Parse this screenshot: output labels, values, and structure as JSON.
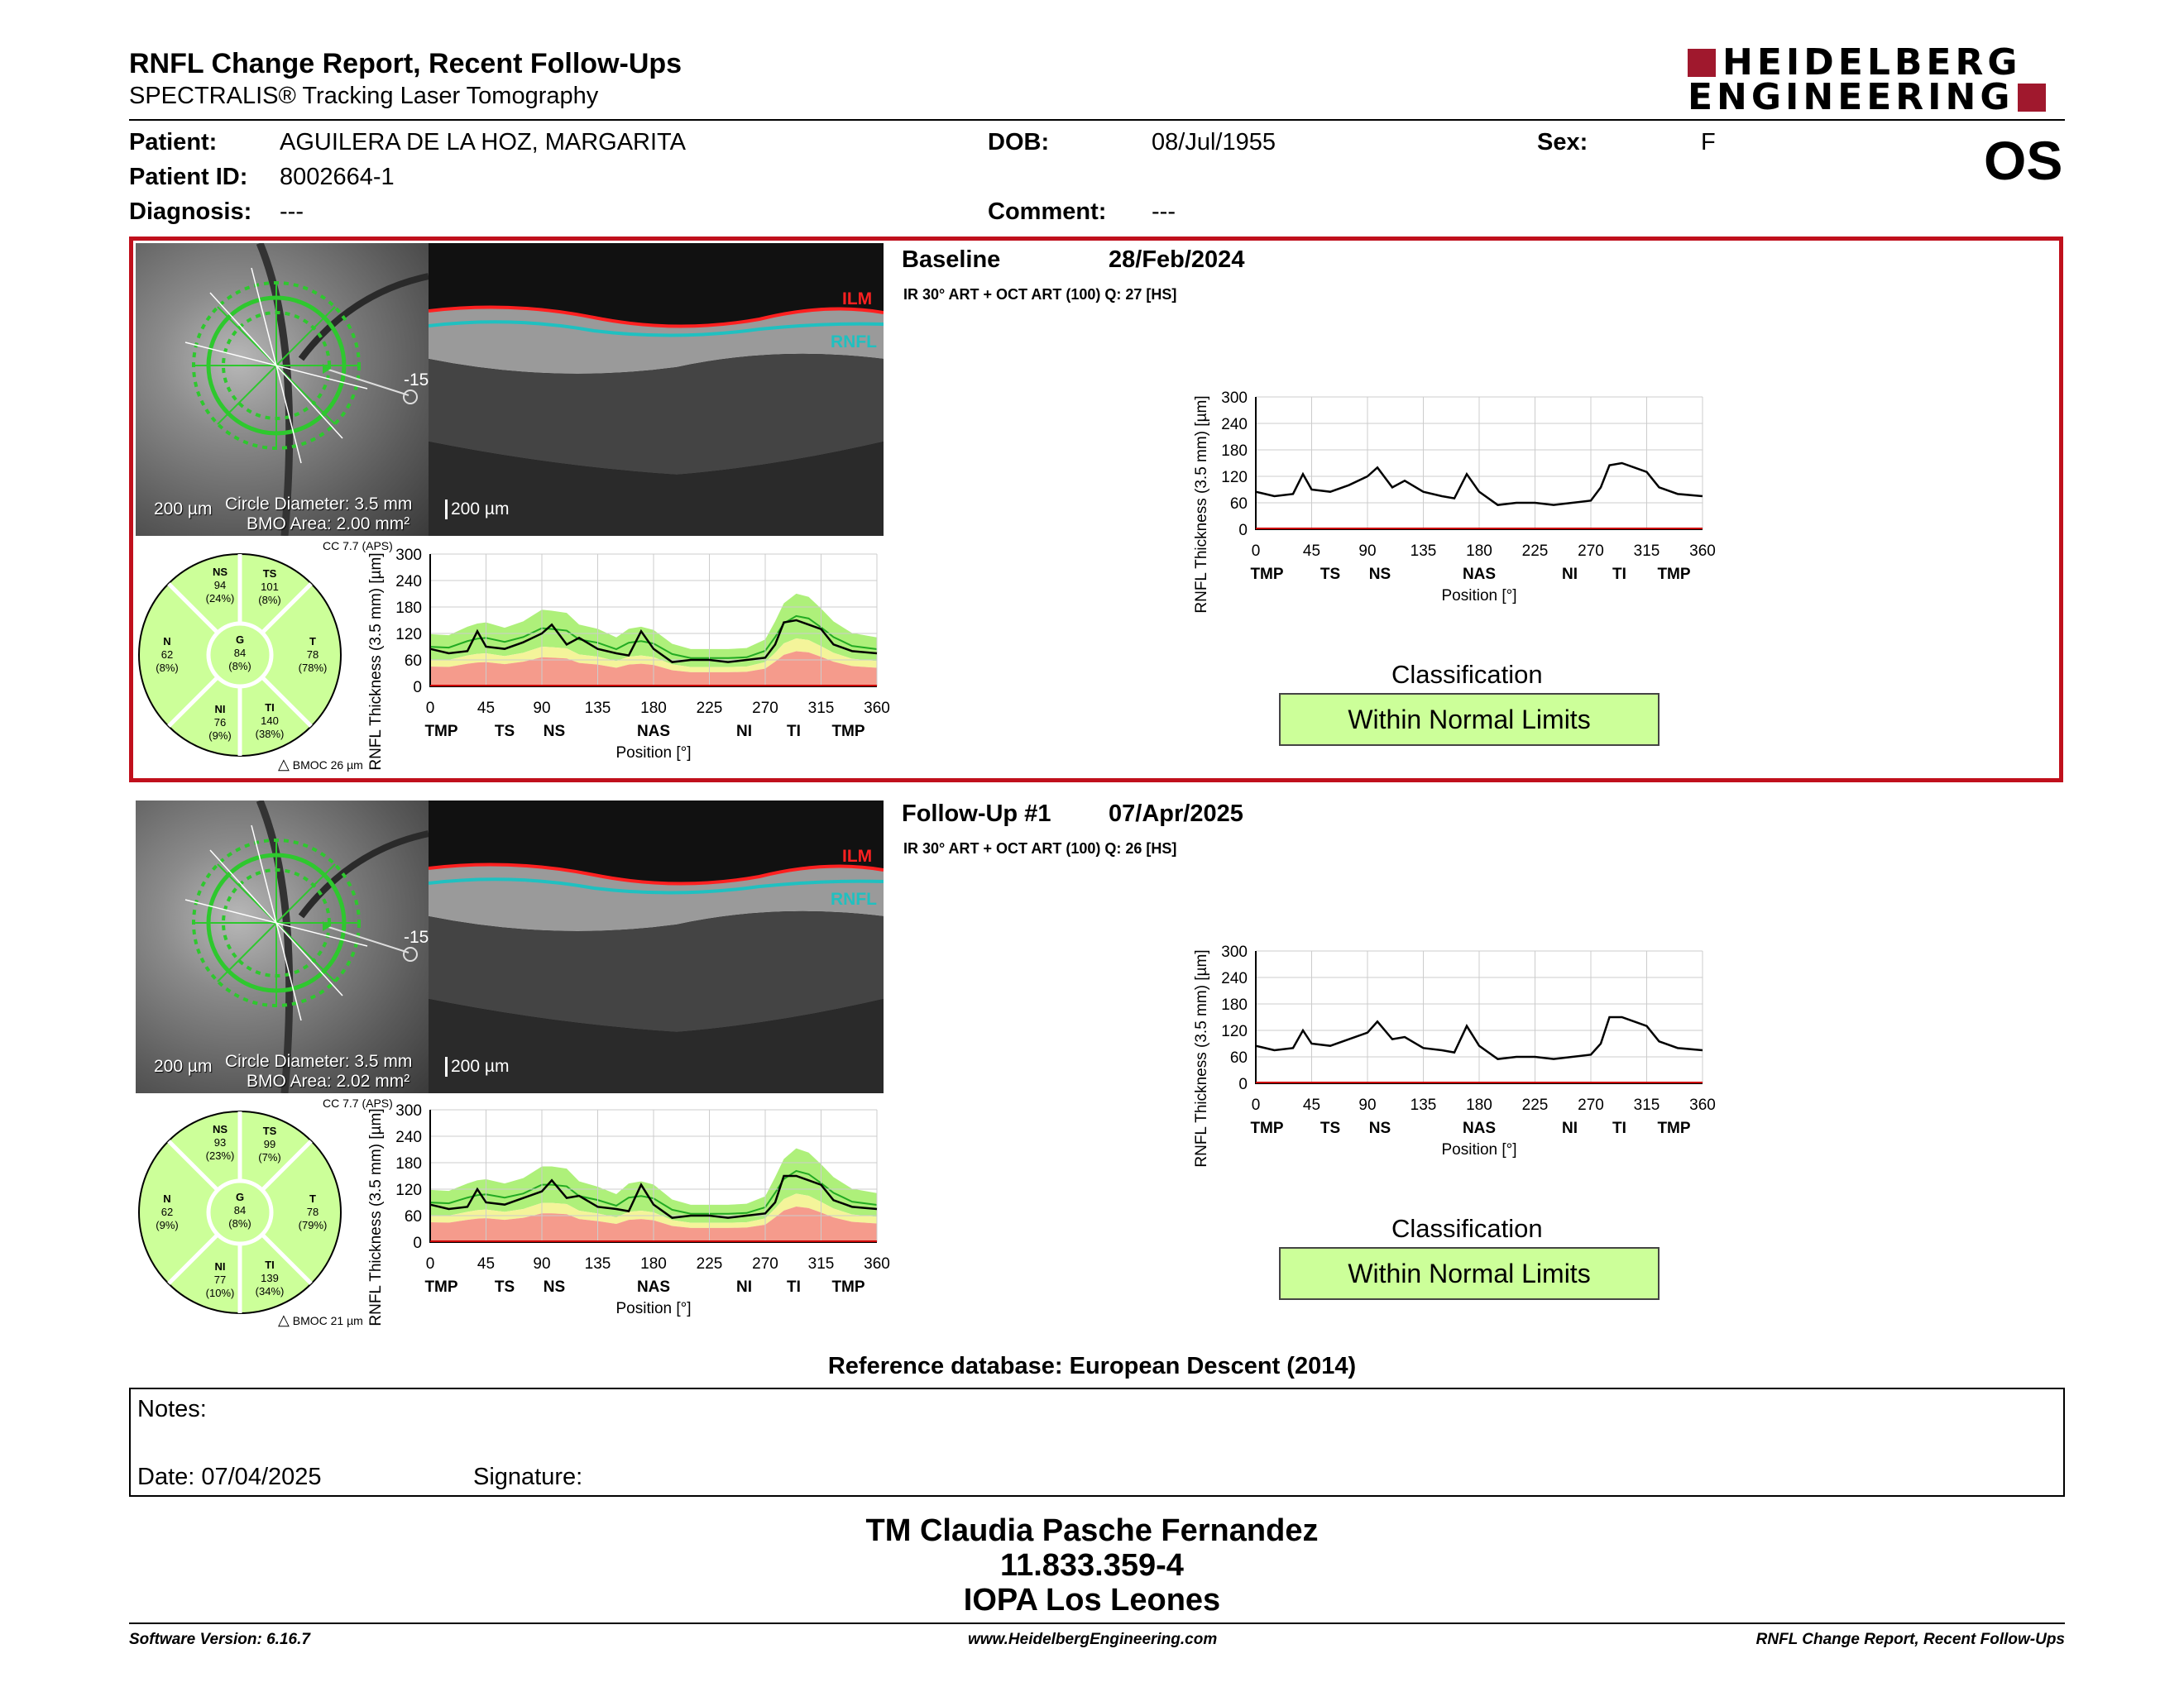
{
  "header": {
    "title": "RNFL Change Report, Recent Follow-Ups",
    "subtitle": "SPECTRALIS® Tracking Laser Tomography",
    "logo_line1": "HEIDELBERG",
    "logo_line2": "ENGINEERING",
    "brand_color": "#a0182d"
  },
  "patient": {
    "patient_label": "Patient:",
    "patient_value": "AGUILERA DE LA HOZ, MARGARITA",
    "id_label": "Patient ID:",
    "id_value": "8002664-1",
    "diagnosis_label": "Diagnosis:",
    "diagnosis_value": "---",
    "dob_label": "DOB:",
    "dob_value": "08/Jul/1955",
    "comment_label": "Comment:",
    "comment_value": "---",
    "sex_label": "Sex:",
    "sex_value": "F",
    "eye": "OS"
  },
  "exams": [
    {
      "name": "Baseline",
      "date": "28/Feb/2024",
      "scan_info": "IR 30° ART + OCT ART (100) Q: 27 [HS]",
      "scale_fundus": "200 µm",
      "circle_diameter": "Circle Diameter: 3.5 mm",
      "bmo_area": "BMO Area: 2.00 mm²",
      "scale_oct": "200 µm",
      "angle": "-15",
      "ilm": "ILM",
      "rnfl": "RNFL",
      "cc": "CC 7.7 (APS)",
      "bmoc": "BMOC 26 µm",
      "sectors": {
        "NS": {
          "label": "NS",
          "value": "94",
          "pct": "(24%)"
        },
        "TS": {
          "label": "TS",
          "value": "101",
          "pct": "(8%)"
        },
        "N": {
          "label": "N",
          "value": "62",
          "pct": "(8%)"
        },
        "G": {
          "label": "G",
          "value": "84",
          "pct": "(8%)"
        },
        "T": {
          "label": "T",
          "value": "78",
          "pct": "(78%)"
        },
        "NI": {
          "label": "NI",
          "value": "76",
          "pct": "(9%)"
        },
        "TI": {
          "label": "TI",
          "value": "140",
          "pct": "(38%)"
        }
      },
      "classification_title": "Classification",
      "classification": "Within Normal Limits"
    },
    {
      "name": "Follow-Up #1",
      "date": "07/Apr/2025",
      "scan_info": "IR 30° ART + OCT ART (100) Q: 26 [HS]",
      "scale_fundus": "200 µm",
      "circle_diameter": "Circle Diameter: 3.5 mm",
      "bmo_area": "BMO Area: 2.02 mm²",
      "scale_oct": "200 µm",
      "angle": "-15",
      "ilm": "ILM",
      "rnfl": "RNFL",
      "cc": "CC 7.7 (APS)",
      "bmoc": "BMOC 21 µm",
      "sectors": {
        "NS": {
          "label": "NS",
          "value": "93",
          "pct": "(23%)"
        },
        "TS": {
          "label": "TS",
          "value": "99",
          "pct": "(7%)"
        },
        "N": {
          "label": "N",
          "value": "62",
          "pct": "(9%)"
        },
        "G": {
          "label": "G",
          "value": "84",
          "pct": "(8%)"
        },
        "T": {
          "label": "T",
          "value": "78",
          "pct": "(79%)"
        },
        "NI": {
          "label": "NI",
          "value": "77",
          "pct": "(10%)"
        },
        "TI": {
          "label": "TI",
          "value": "139",
          "pct": "(34%)"
        }
      },
      "classification_title": "Classification",
      "classification": "Within Normal Limits"
    }
  ],
  "chart_data": [
    {
      "type": "line",
      "ylabel": "RNFL Thickness (3.5 mm) [µm]",
      "xlabel": "Position [°]",
      "x_ticks": [
        0,
        45,
        90,
        135,
        180,
        225,
        270,
        315,
        360
      ],
      "y_ticks": [
        0,
        60,
        120,
        180,
        240,
        300
      ],
      "sector_labels": [
        {
          "x": 9,
          "label": "TMP"
        },
        {
          "x": 60,
          "label": "TS"
        },
        {
          "x": 100,
          "label": "NS"
        },
        {
          "x": 180,
          "label": "NAS"
        },
        {
          "x": 253,
          "label": "NI"
        },
        {
          "x": 293,
          "label": "TI"
        },
        {
          "x": 337,
          "label": "TMP"
        }
      ],
      "ylim": [
        0,
        300
      ],
      "xlim": [
        0,
        360
      ],
      "x": [
        0,
        15,
        30,
        38,
        45,
        60,
        75,
        90,
        98,
        110,
        120,
        135,
        150,
        160,
        170,
        180,
        195,
        210,
        225,
        240,
        255,
        270,
        278,
        285,
        295,
        305,
        315,
        325,
        340,
        360
      ],
      "series": [
        {
          "values": [
            85,
            75,
            80,
            125,
            90,
            85,
            100,
            120,
            140,
            95,
            110,
            85,
            75,
            70,
            125,
            85,
            55,
            60,
            60,
            55,
            60,
            65,
            95,
            145,
            150,
            140,
            130,
            95,
            80,
            75
          ]
        },
        {
          "values": [
            85,
            75,
            80,
            120,
            90,
            85,
            100,
            115,
            140,
            100,
            105,
            80,
            75,
            70,
            130,
            85,
            55,
            60,
            60,
            55,
            60,
            65,
            90,
            150,
            150,
            140,
            130,
            95,
            80,
            75
          ]
        }
      ]
    }
  ],
  "reference_db": "Reference database: European Descent (2014)",
  "notes": {
    "notes_label": "Notes:",
    "date_label": "Date: 07/04/2025",
    "signature_label": "Signature:"
  },
  "footer": {
    "name": "TM Claudia Pasche Fernandez",
    "id": "11.833.359-4",
    "org": "IOPA Los Leones",
    "software": "Software Version: 6.16.7",
    "website": "www.HeidelbergEngineering.com",
    "report_name": "RNFL Change Report, Recent Follow-Ups"
  },
  "colors": {
    "panel_border": "#c0101c",
    "normal_fill": "#ccff99",
    "green_band": "#aef07a",
    "yellow_band": "#f4f49a",
    "red_band": "#f59b8c",
    "ilm_red": "#ff2020",
    "rnfl_cyan": "#20c0c0"
  },
  "icons": [
    "heidelberg-logo-icon",
    "delta-icon"
  ]
}
